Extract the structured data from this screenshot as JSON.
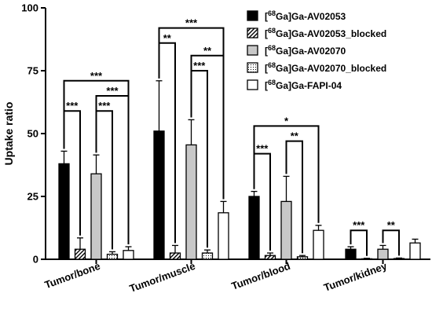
{
  "chart_data": {
    "type": "bar",
    "title": "",
    "xlabel": "",
    "ylabel": "Uptake ratio",
    "ylim": [
      0,
      100
    ],
    "yticks": [
      "0",
      "25",
      "50",
      "75",
      "100"
    ],
    "grid": false,
    "legend_position": "top-right",
    "categories": [
      "Tumor/bone",
      "Tumor/muscle",
      "Tumor/blood",
      "Tumor/kidney"
    ],
    "series": [
      {
        "name": "[68Ga]Ga-AV02053",
        "legend": {
          "sup": "68",
          "text": "Ga]Ga-AV02053"
        },
        "fill": "#000000",
        "pattern": "solid",
        "values": [
          38,
          51,
          25,
          4
        ],
        "errors": [
          5,
          20,
          2,
          1
        ]
      },
      {
        "name": "[68Ga]Ga-AV02053_blocked",
        "legend": {
          "sup": "68",
          "text": "Ga]Ga-AV02053_blocked"
        },
        "fill": "#ffffff",
        "pattern": "hatch",
        "values": [
          4,
          2.5,
          1.5,
          0.2
        ],
        "errors": [
          4.5,
          3,
          1,
          0.2
        ]
      },
      {
        "name": "[68Ga]Ga-AV02070",
        "legend": {
          "sup": "68",
          "text": "Ga]Ga-AV02070"
        },
        "fill": "#c8c8c8",
        "pattern": "solid",
        "values": [
          34,
          45.5,
          23,
          4
        ],
        "errors": [
          7.5,
          10,
          10,
          1.5
        ]
      },
      {
        "name": "[68Ga]Ga-AV02070_blocked",
        "legend": {
          "sup": "68",
          "text": "Ga]Ga-AV02070_blocked"
        },
        "fill": "#ffffff",
        "pattern": "dots",
        "values": [
          2,
          2.5,
          1,
          0.3
        ],
        "errors": [
          1,
          1.2,
          0.5,
          0.2
        ]
      },
      {
        "name": "[68Ga]Ga-FAPI-04",
        "legend": {
          "sup": "68",
          "text": "Ga]Ga-FAPI-04"
        },
        "fill": "#ffffff",
        "pattern": "solid",
        "values": [
          3.5,
          18.5,
          11.5,
          6.5
        ],
        "errors": [
          1.5,
          4.5,
          2,
          1.5
        ]
      }
    ],
    "annotations": [
      {
        "group": 0,
        "from": 0,
        "to": 1,
        "y": 59,
        "label": "***"
      },
      {
        "group": 0,
        "from": 2,
        "to": 3,
        "y": 59,
        "label": "***"
      },
      {
        "group": 0,
        "from": 2,
        "to": 4,
        "y": 65,
        "label": "***"
      },
      {
        "group": 0,
        "from": 0,
        "to": 4,
        "y": 71,
        "label": "***"
      },
      {
        "group": 1,
        "from": 0,
        "to": 1,
        "y": 86,
        "label": "**"
      },
      {
        "group": 1,
        "from": 2,
        "to": 3,
        "y": 75,
        "label": "***"
      },
      {
        "group": 1,
        "from": 2,
        "to": 4,
        "y": 81,
        "label": "**"
      },
      {
        "group": 1,
        "from": 0,
        "to": 4,
        "y": 92,
        "label": "***"
      },
      {
        "group": 2,
        "from": 0,
        "to": 1,
        "y": 42,
        "label": "***"
      },
      {
        "group": 2,
        "from": 2,
        "to": 3,
        "y": 47,
        "label": "**"
      },
      {
        "group": 2,
        "from": 0,
        "to": 4,
        "y": 53,
        "label": "*"
      },
      {
        "group": 3,
        "from": 0,
        "to": 1,
        "y": 11.5,
        "label": "***"
      },
      {
        "group": 3,
        "from": 2,
        "to": 3,
        "y": 11.5,
        "label": "**"
      }
    ]
  }
}
